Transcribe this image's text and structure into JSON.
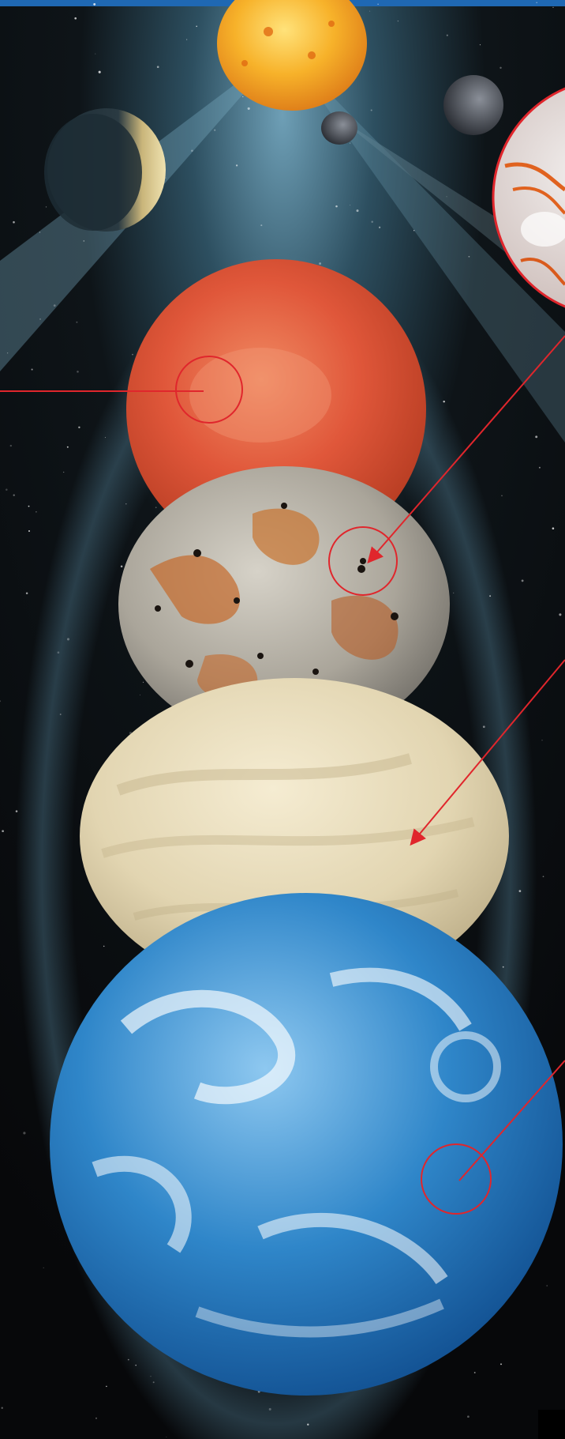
{
  "scene": {
    "top_band_color": "#1f68b3",
    "space_color": "#0a0a0c",
    "glow_color": "#5f93ad",
    "annotation_color": "#e0262c"
  },
  "bodies": [
    {
      "name": "sun",
      "icon": "sun-icon",
      "color": "#f3a21d"
    },
    {
      "name": "crescent-moon",
      "icon": "crescent-moon-icon",
      "color": "#c9b57a"
    },
    {
      "name": "small-moon",
      "icon": "small-moon-icon",
      "color": "#404650"
    },
    {
      "name": "grey-moon",
      "icon": "grey-moon-icon",
      "color": "#2d3038"
    },
    {
      "name": "red-planet",
      "icon": "red-planet-icon",
      "color": "#d94a2a"
    },
    {
      "name": "volcanic-moon",
      "icon": "volcanic-moon-icon",
      "color": "#a9a49a"
    },
    {
      "name": "cloudy-planet",
      "icon": "cloudy-planet-icon",
      "color": "#e7dcbd"
    },
    {
      "name": "blue-planet",
      "icon": "blue-planet-icon",
      "color": "#2f86c9"
    }
  ],
  "annotations": [
    {
      "name": "red-planet-callout"
    },
    {
      "name": "volcanic-moon-callout"
    },
    {
      "name": "cloudy-planet-pointer"
    },
    {
      "name": "blue-planet-callout"
    }
  ]
}
